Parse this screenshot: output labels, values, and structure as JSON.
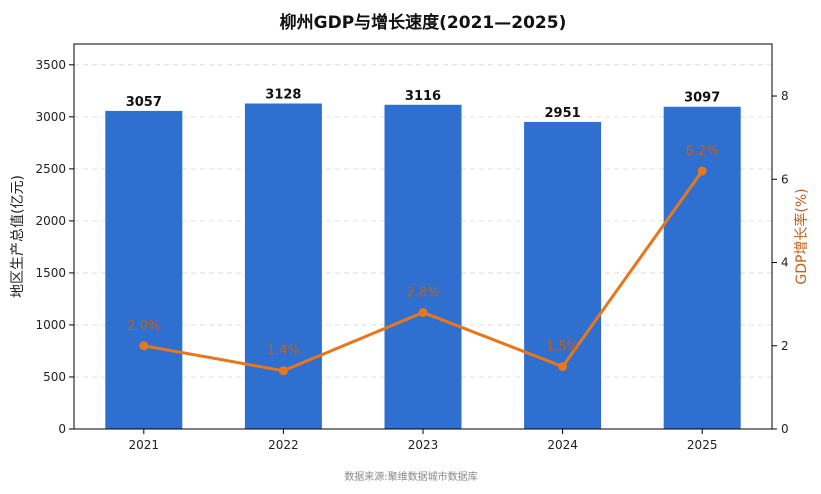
{
  "chart_data": {
    "type": "bar+line",
    "title": "柳州GDP与增长速度(2021—2025)",
    "categories": [
      "2021",
      "2022",
      "2023",
      "2024",
      "2025"
    ],
    "series": [
      {
        "name": "",
        "type": "bar",
        "axis": "left",
        "values": [
          3057,
          3128,
          3116,
          2951,
          3097
        ],
        "labels": [
          "3057",
          "3128",
          "3116",
          "2951",
          "3097"
        ]
      },
      {
        "name": "",
        "type": "line",
        "axis": "right",
        "values": [
          2.0,
          1.4,
          2.8,
          1.5,
          6.2
        ],
        "labels": [
          "2.0%",
          "1.4%",
          "2.8%",
          "1.5%",
          "6.2%"
        ]
      }
    ],
    "ylabel_left": "地区生产总值(亿元)",
    "ylabel_right": "GDP增长率(%)",
    "ylim_left": [
      0,
      3700
    ],
    "ylim_right": [
      0,
      9.25
    ],
    "yticks_left": [
      "0",
      "500",
      "1000",
      "1500",
      "2000",
      "2500",
      "3000",
      "3500"
    ],
    "yticks_right": [
      "0",
      "2",
      "4",
      "6",
      "8"
    ],
    "grid": true,
    "colors": {
      "bar": "#2f6fd0",
      "line": "#e8761a",
      "line_label": "#c0601a",
      "grid": "#d8d8d8"
    }
  },
  "source": "数据来源:聚维数据城市数据库"
}
